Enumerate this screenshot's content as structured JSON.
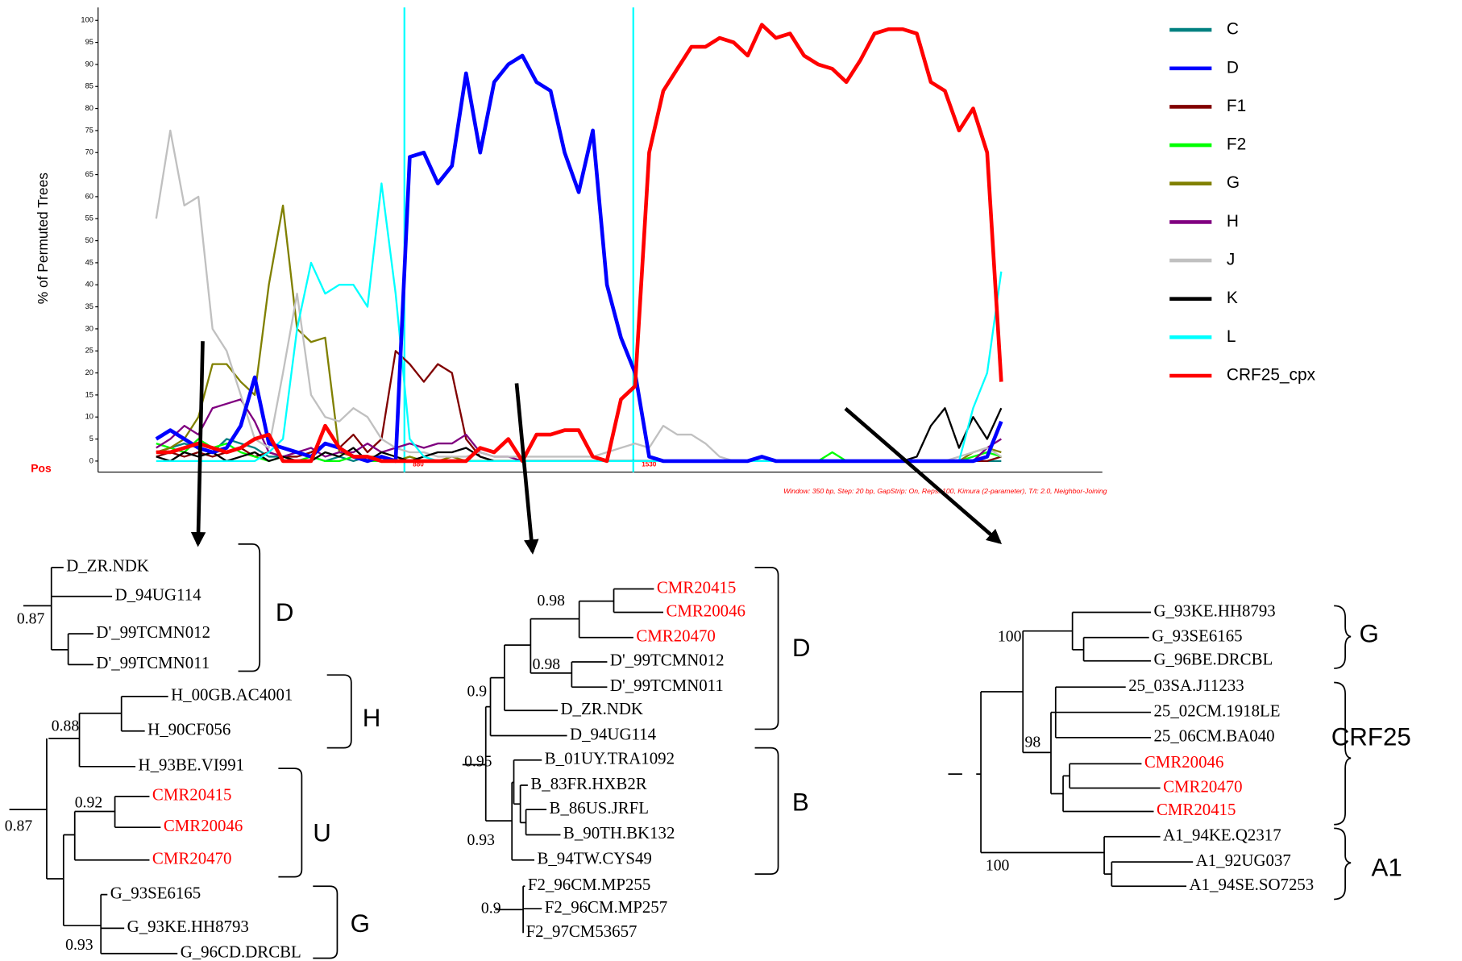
{
  "chart_data": {
    "type": "line",
    "ylabel": "% of Permuted Trees",
    "xlabel": "Pos",
    "footnote": "Window: 350 bp, Step: 20 bp, GapStrip: On, Reps: 100, Kimura (2-parameter), T/t: 2.0, Neighbor-Joining",
    "breakpoints": [
      880,
      1530
    ],
    "breakpoint_color": "#00ffff",
    "legend": "right",
    "grid": false,
    "xlim": [
      10,
      2862
    ],
    "ylim": [
      -2.5,
      102.5
    ],
    "yticks": [
      0,
      5,
      10,
      15,
      20,
      25,
      30,
      35,
      40,
      45,
      50,
      55,
      60,
      65,
      70,
      75,
      80,
      85,
      90,
      95,
      100
    ],
    "x": [
      175,
      215,
      255,
      295,
      335,
      375,
      415,
      455,
      495,
      535,
      575,
      615,
      655,
      695,
      735,
      775,
      815,
      855,
      895,
      935,
      975,
      1015,
      1055,
      1095,
      1135,
      1175,
      1215,
      1255,
      1295,
      1335,
      1375,
      1415,
      1455,
      1495,
      1535,
      1575,
      1615,
      1655,
      1695,
      1735,
      1775,
      1815,
      1855,
      1895,
      1935,
      1975,
      2015,
      2055,
      2095,
      2135,
      2175,
      2215,
      2255,
      2295,
      2335,
      2375,
      2415,
      2455,
      2495,
      2535,
      2575
    ],
    "series": [
      {
        "name": "C",
        "color": "#008080",
        "width": 2,
        "values": [
          2,
          3,
          4,
          3,
          2,
          5,
          4,
          3,
          1,
          1,
          2,
          1,
          0,
          1,
          0,
          1,
          0,
          0,
          0,
          0,
          0,
          0,
          0,
          0,
          0,
          0,
          0,
          0,
          0,
          0,
          0,
          0,
          0,
          0,
          0,
          0,
          0,
          0,
          0,
          0,
          0,
          0,
          0,
          0,
          0,
          0,
          0,
          0,
          0,
          0,
          0,
          0,
          0,
          0,
          0,
          0,
          0,
          0,
          0,
          0,
          0
        ]
      },
      {
        "name": "D",
        "color": "#0000ff",
        "width": 4,
        "values": [
          5,
          7,
          5,
          3,
          2,
          3,
          8,
          19,
          4,
          3,
          2,
          1,
          4,
          3,
          1,
          0,
          1,
          0,
          69,
          70,
          63,
          67,
          88,
          70,
          86,
          90,
          92,
          86,
          84,
          70,
          61,
          75,
          40,
          28,
          20,
          1,
          0,
          0,
          0,
          0,
          0,
          0,
          0,
          1,
          0,
          0,
          0,
          0,
          0,
          0,
          0,
          0,
          0,
          0,
          0,
          0,
          0,
          0,
          0,
          1,
          9
        ]
      },
      {
        "name": "F1",
        "color": "#800000",
        "width": 2,
        "values": [
          1,
          2,
          1,
          2,
          1,
          2,
          3,
          1,
          2,
          1,
          1,
          2,
          4,
          3,
          6,
          2,
          5,
          25,
          22,
          18,
          22,
          20,
          5,
          1,
          0,
          0,
          0,
          0,
          0,
          0,
          0,
          0,
          0,
          0,
          0,
          0,
          0,
          0,
          0,
          0,
          0,
          0,
          0,
          0,
          0,
          0,
          0,
          0,
          0,
          0,
          0,
          0,
          0,
          0,
          0,
          0,
          0,
          0,
          0,
          0,
          1
        ]
      },
      {
        "name": "F2",
        "color": "#00ff00",
        "width": 2,
        "values": [
          4,
          3,
          2,
          5,
          3,
          4,
          2,
          1,
          0,
          1,
          0,
          1,
          0,
          0,
          1,
          0,
          0,
          0,
          1,
          0,
          0,
          0,
          0,
          0,
          0,
          0,
          0,
          0,
          0,
          0,
          0,
          0,
          0,
          0,
          0,
          0,
          0,
          0,
          0,
          0,
          0,
          0,
          0,
          0,
          0,
          0,
          0,
          0,
          2,
          0,
          0,
          0,
          0,
          0,
          0,
          0,
          0,
          0,
          1,
          2,
          1
        ]
      },
      {
        "name": "G",
        "color": "#808000",
        "width": 2,
        "values": [
          2,
          3,
          5,
          10,
          22,
          22,
          18,
          15,
          40,
          58,
          30,
          27,
          28,
          2,
          1,
          1,
          1,
          0,
          1,
          0,
          0,
          1,
          0,
          0,
          0,
          0,
          0,
          0,
          0,
          0,
          0,
          0,
          0,
          0,
          0,
          0,
          0,
          0,
          0,
          0,
          0,
          0,
          0,
          0,
          0,
          0,
          0,
          0,
          0,
          0,
          0,
          0,
          0,
          0,
          0,
          0,
          0,
          0,
          2,
          3,
          2
        ]
      },
      {
        "name": "H",
        "color": "#800080",
        "width": 2,
        "values": [
          3,
          5,
          8,
          6,
          12,
          13,
          14,
          9,
          2,
          1,
          2,
          3,
          1,
          2,
          2,
          4,
          2,
          3,
          4,
          3,
          4,
          4,
          6,
          2,
          1,
          1,
          0,
          0,
          0,
          0,
          0,
          0,
          0,
          0,
          0,
          0,
          0,
          0,
          0,
          0,
          0,
          0,
          0,
          0,
          0,
          0,
          0,
          0,
          0,
          0,
          0,
          0,
          0,
          0,
          0,
          0,
          0,
          0,
          0,
          3,
          5
        ]
      },
      {
        "name": "J",
        "color": "#c0c0c0",
        "width": 2,
        "values": [
          55,
          75,
          58,
          60,
          30,
          25,
          15,
          5,
          3,
          20,
          38,
          15,
          10,
          9,
          12,
          10,
          5,
          3,
          2,
          2,
          1,
          1,
          1,
          2,
          1,
          1,
          1,
          1,
          1,
          1,
          1,
          1,
          2,
          3,
          4,
          3,
          8,
          6,
          6,
          4,
          1,
          0,
          0,
          0,
          0,
          0,
          0,
          0,
          0,
          0,
          0,
          0,
          0,
          0,
          0,
          0,
          0,
          1,
          2,
          3,
          1
        ]
      },
      {
        "name": "K",
        "color": "#000000",
        "width": 2,
        "values": [
          1,
          0,
          2,
          1,
          2,
          0,
          1,
          2,
          0,
          1,
          0,
          0,
          2,
          1,
          3,
          0,
          2,
          1,
          0,
          1,
          2,
          2,
          3,
          1,
          0,
          0,
          0,
          0,
          0,
          0,
          0,
          0,
          0,
          0,
          0,
          0,
          0,
          0,
          0,
          0,
          0,
          0,
          0,
          0,
          0,
          0,
          0,
          0,
          0,
          0,
          0,
          0,
          0,
          0,
          1,
          8,
          12,
          3,
          10,
          5,
          12
        ]
      },
      {
        "name": "L",
        "color": "#00ffff",
        "width": 2,
        "values": [
          0,
          0,
          0,
          0,
          0,
          0,
          0,
          0,
          2,
          5,
          30,
          45,
          38,
          40,
          40,
          35,
          63,
          38,
          5,
          1,
          0,
          0,
          0,
          0,
          0,
          0,
          0,
          0,
          0,
          0,
          0,
          0,
          0,
          0,
          0,
          0,
          0,
          0,
          0,
          0,
          0,
          0,
          0,
          0,
          0,
          0,
          0,
          0,
          0,
          0,
          0,
          0,
          0,
          0,
          0,
          0,
          0,
          0,
          12,
          20,
          43
        ]
      },
      {
        "name": "CRF25_cpx",
        "color": "#ff0000",
        "width": 4,
        "values": [
          2,
          2,
          3,
          4,
          3,
          2,
          3,
          5,
          6,
          0,
          0,
          0,
          8,
          3,
          1,
          1,
          0,
          0,
          0,
          0,
          0,
          0,
          0,
          3,
          2,
          5,
          0,
          6,
          6,
          7,
          7,
          1,
          0,
          14,
          17,
          70,
          84,
          89,
          94,
          94,
          96,
          95,
          92,
          99,
          96,
          97,
          92,
          90,
          89,
          86,
          91,
          97,
          98,
          98,
          97,
          86,
          84,
          75,
          80,
          70,
          18
        ]
      }
    ]
  },
  "trees": [
    {
      "leaves": [
        {
          "label": "D_ZR.NDK",
          "color": "#000000"
        },
        {
          "label": "D_94UG114",
          "color": "#000000"
        },
        {
          "label": "D'_99TCMN012",
          "color": "#000000"
        },
        {
          "label": "D'_99TCMN011",
          "color": "#000000"
        },
        {
          "label": "H_00GB.AC4001",
          "color": "#000000"
        },
        {
          "label": "H_90CF056",
          "color": "#000000"
        },
        {
          "label": "H_93BE.VI991",
          "color": "#000000"
        },
        {
          "label": "CMR20415",
          "color": "#ff0000"
        },
        {
          "label": "CMR20046",
          "color": "#ff0000"
        },
        {
          "label": "CMR20470",
          "color": "#ff0000"
        },
        {
          "label": "G_93SE6165",
          "color": "#000000"
        },
        {
          "label": "G_93KE.HH8793",
          "color": "#000000"
        },
        {
          "label": "G_96CD.DRCBL",
          "color": "#000000"
        }
      ],
      "supports": [
        0.87,
        0.88,
        0.92,
        0.87,
        0.93
      ],
      "clades": [
        "D",
        "H",
        "U",
        "G"
      ]
    },
    {
      "leaves": [
        {
          "label": "CMR20415",
          "color": "#ff0000"
        },
        {
          "label": "CMR20046",
          "color": "#ff0000"
        },
        {
          "label": "CMR20470",
          "color": "#ff0000"
        },
        {
          "label": "D'_99TCMN012",
          "color": "#000000"
        },
        {
          "label": "D'_99TCMN011",
          "color": "#000000"
        },
        {
          "label": "D_ZR.NDK",
          "color": "#000000"
        },
        {
          "label": "D_94UG114",
          "color": "#000000"
        },
        {
          "label": "B_01UY.TRA1092",
          "color": "#000000"
        },
        {
          "label": "B_83FR.HXB2R",
          "color": "#000000"
        },
        {
          "label": "B_86US.JRFL",
          "color": "#000000"
        },
        {
          "label": "B_90TH.BK132",
          "color": "#000000"
        },
        {
          "label": "B_94TW.CYS49",
          "color": "#000000"
        },
        {
          "label": "F2_96CM.MP255",
          "color": "#000000"
        },
        {
          "label": "F2_96CM.MP257",
          "color": "#000000"
        },
        {
          "label": "F2_97CM53657",
          "color": "#000000"
        }
      ],
      "supports": [
        0.98,
        0.98,
        0.9,
        0.95,
        0.93,
        0.9
      ],
      "clades": [
        "D",
        "B"
      ]
    },
    {
      "leaves": [
        {
          "label": "G_93KE.HH8793",
          "color": "#000000"
        },
        {
          "label": "G_93SE6165",
          "color": "#000000"
        },
        {
          "label": "G_96BE.DRCBL",
          "color": "#000000"
        },
        {
          "label": "25_03SA.J11233",
          "color": "#000000"
        },
        {
          "label": "25_02CM.1918LE",
          "color": "#000000"
        },
        {
          "label": "25_06CM.BA040",
          "color": "#000000"
        },
        {
          "label": "CMR20046",
          "color": "#ff0000"
        },
        {
          "label": "CMR20470",
          "color": "#ff0000"
        },
        {
          "label": "CMR20415",
          "color": "#ff0000"
        },
        {
          "label": "A1_94KE.Q2317",
          "color": "#000000"
        },
        {
          "label": "A1_92UG037",
          "color": "#000000"
        },
        {
          "label": "A1_94SE.SO7253",
          "color": "#000000"
        }
      ],
      "supports": [
        100,
        98,
        100
      ],
      "clades": [
        "G",
        "CRF25",
        "A1"
      ]
    }
  ]
}
